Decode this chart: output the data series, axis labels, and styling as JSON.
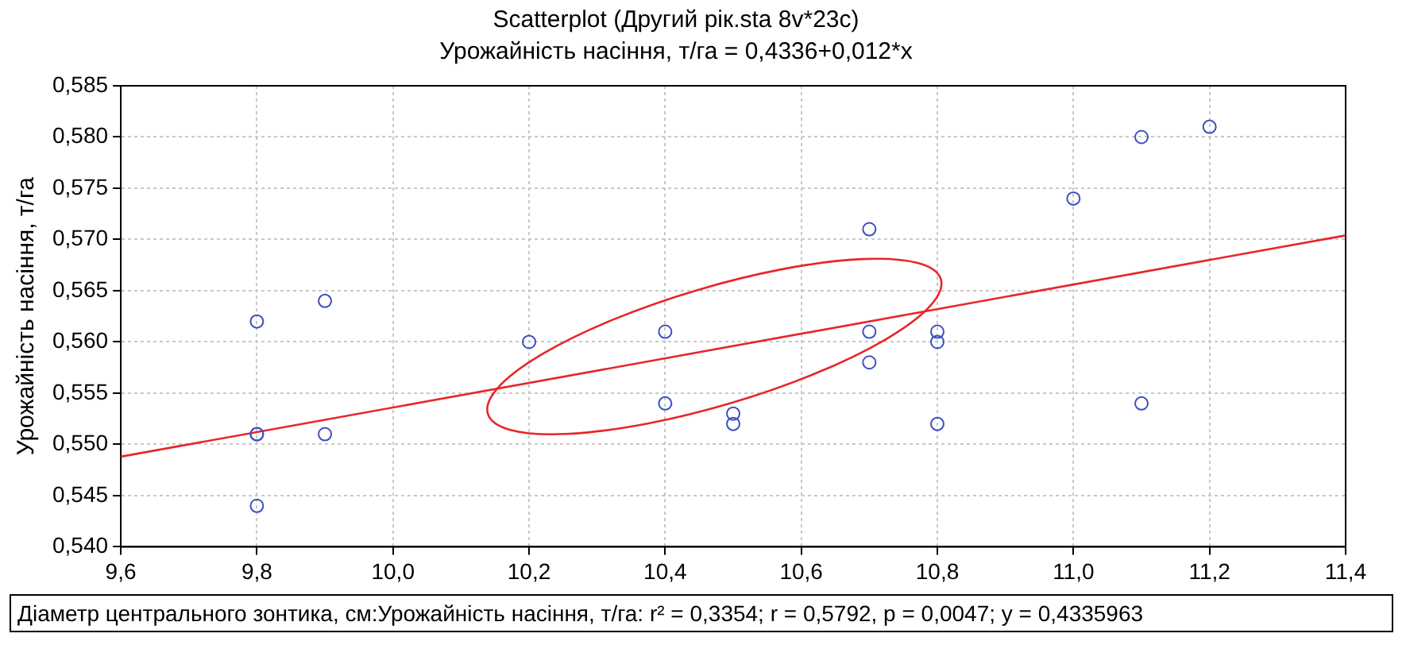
{
  "chart_data": {
    "type": "scatter",
    "title": "Scatterplot (Другий рік.sta 8v*23c)",
    "subtitle": "Урожайність насіння, т/га = 0,4336+0,012*x",
    "ylabel": "Урожайність насіння, т/га",
    "annotations": [
      "Діаметр центрального зонтика, см:Урожайність насіння, т/га:  r² = 0,3354;  r = 0,5792, p = 0,0047;  y = 0,4335963"
    ],
    "x": [
      9.8,
      9.8,
      9.8,
      9.8,
      9.9,
      9.9,
      10.2,
      10.4,
      10.4,
      10.5,
      10.5,
      10.7,
      10.7,
      10.7,
      10.8,
      10.8,
      10.8,
      11.0,
      11.1,
      11.1,
      11.2
    ],
    "series": [
      {
        "color": "#3a4fc0",
        "marker": "circle",
        "values": [
          0.562,
          0.551,
          0.551,
          0.544,
          0.564,
          0.551,
          0.56,
          0.561,
          0.554,
          0.553,
          0.552,
          0.571,
          0.561,
          0.558,
          0.561,
          0.56,
          0.552,
          0.574,
          0.58,
          0.554,
          0.581
        ]
      },
      {
        "type": "line",
        "color": "#e8262a",
        "marker": "none",
        "x": [
          9.6,
          11.4
        ],
        "values": [
          0.5488,
          0.5704
        ]
      }
    ],
    "xlim": [
      9.6,
      11.4
    ],
    "xticks": [
      {
        "value": 9.6,
        "label": "9,6"
      },
      {
        "value": 9.8,
        "label": "9,8"
      },
      {
        "value": 10.0,
        "label": "10,0"
      },
      {
        "value": 10.2,
        "label": "10,2"
      },
      {
        "value": 10.4,
        "label": "10,4"
      },
      {
        "value": 10.6,
        "label": "10,6"
      },
      {
        "value": 10.8,
        "label": "10,8"
      },
      {
        "value": 11.0,
        "label": "11,0"
      },
      {
        "value": 11.2,
        "label": "11,2"
      },
      {
        "value": 11.4,
        "label": "11,4"
      }
    ],
    "ylim": [
      0.54,
      0.585
    ],
    "yticks": [
      {
        "value": 0.54,
        "label": "0,540"
      },
      {
        "value": 0.545,
        "label": "0,545"
      },
      {
        "value": 0.55,
        "label": "0,550"
      },
      {
        "value": 0.555,
        "label": "0,555"
      },
      {
        "value": 0.56,
        "label": "0,560"
      },
      {
        "value": 0.565,
        "label": "0,565"
      },
      {
        "value": 0.57,
        "label": "0,570"
      },
      {
        "value": 0.575,
        "label": "0,575"
      },
      {
        "value": 0.58,
        "label": "0,580"
      },
      {
        "value": 0.585,
        "label": "0,585"
      }
    ],
    "grid": true,
    "legend": false
  }
}
